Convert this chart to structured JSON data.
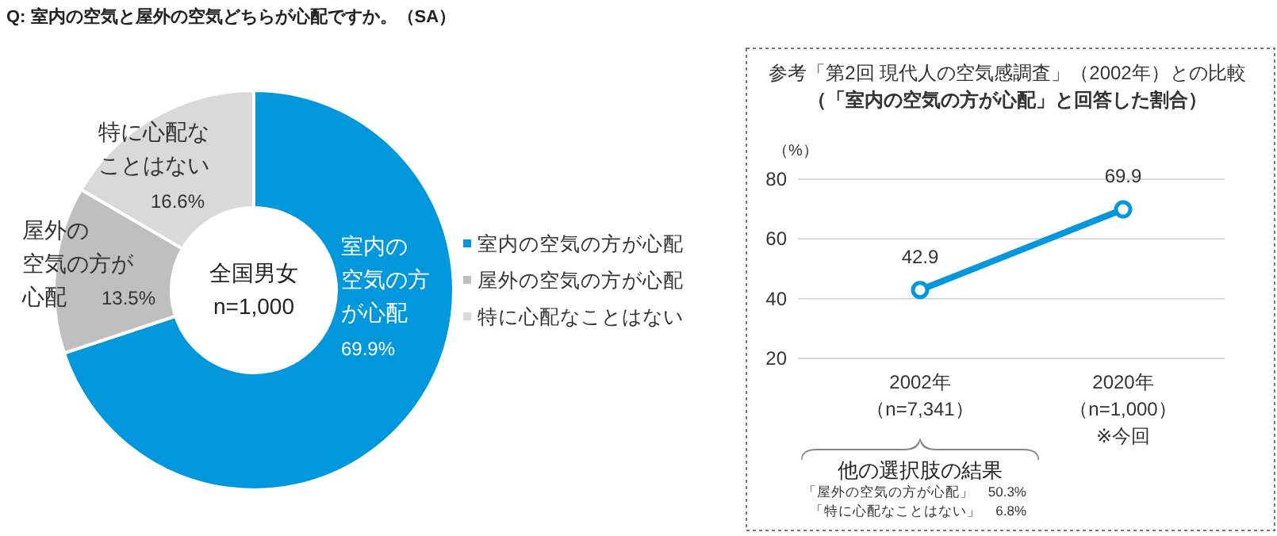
{
  "chart_data": [
    {
      "type": "donut",
      "title": "Q:  室内の空気と屋外の空気どちらが心配ですか。（SA）",
      "categories": [
        "室内の空気の方が心配",
        "屋外の空気の方が心配",
        "特に心配なことはない"
      ],
      "values": [
        69.9,
        13.5,
        16.6
      ],
      "colors": [
        "#0097dc",
        "#bfbfbf",
        "#d9d9d9"
      ],
      "value_labels": [
        "69.9%",
        "13.5%",
        "16.6%"
      ],
      "annotations": [
        "全国男女",
        "n=1,000"
      ],
      "legend": "right"
    },
    {
      "type": "line",
      "title": "参考「第2回  現代人の空気感調査」（2002年）との比較",
      "subtitle": "（「室内の空気の方が心配」と回答した割合）",
      "ylabel": "（%）",
      "categories": [
        "2002年（n=7,341）",
        "2020年（n=1,000）※今回"
      ],
      "series": [
        {
          "color": "#0097dc",
          "values": [
            42.9,
            69.9
          ]
        }
      ],
      "ylim": [
        20,
        80
      ],
      "yticks": [
        20,
        40,
        60,
        80
      ],
      "grid": "y",
      "marker": "circle",
      "data_labels": true,
      "annotations": [
        "他の選択肢の結果",
        "「屋外の空気の方が心配」　50.3%",
        "「特に心配なことはない」　6.8%"
      ]
    }
  ]
}
